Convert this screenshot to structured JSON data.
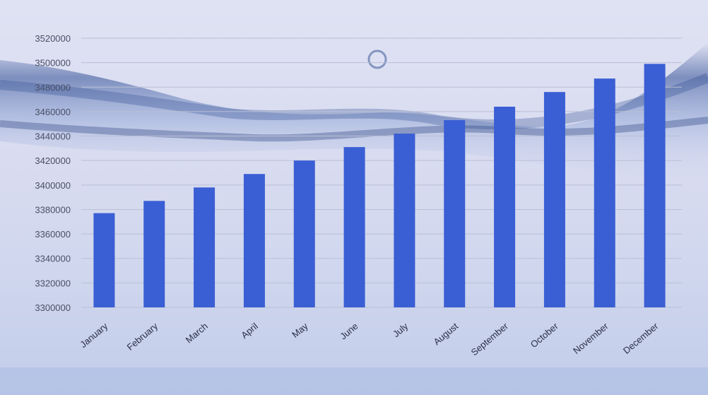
{
  "chart_data": {
    "type": "bar",
    "title": "",
    "xlabel": "",
    "ylabel": "",
    "categories": [
      "January",
      "February",
      "March",
      "April",
      "May",
      "June",
      "July",
      "August",
      "September",
      "October",
      "November",
      "December"
    ],
    "values": [
      3377000,
      3387000,
      3398000,
      3409000,
      3420000,
      3431000,
      3442000,
      3453000,
      3464000,
      3476000,
      3487000,
      3499000
    ],
    "ylim": [
      3300000,
      3520000
    ],
    "yticks": [
      "3300000",
      "3320000",
      "3340000",
      "3360000",
      "3380000",
      "3400000",
      "3420000",
      "3440000",
      "3460000",
      "3480000",
      "3500000",
      "3520000"
    ],
    "grid": true,
    "legend": "none",
    "colors": {
      "bar": "#3a5ed4",
      "grid": "#b9bfd6",
      "axis_text": "#4a4f66"
    }
  }
}
